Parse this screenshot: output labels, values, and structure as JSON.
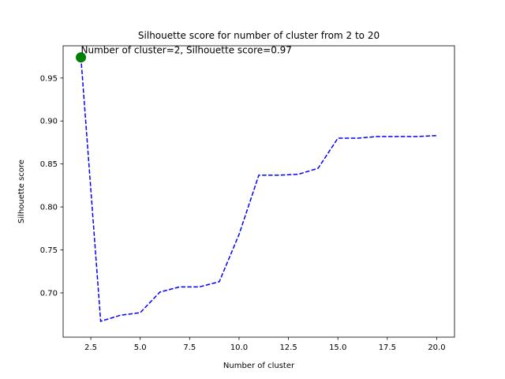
{
  "chart_data": {
    "type": "line",
    "title": "Silhouette score for number of cluster from 2 to 20",
    "xlabel": "Number of cluster",
    "ylabel": "Silhouette score",
    "xlim": [
      1.1,
      20.9
    ],
    "ylim": [
      0.6485,
      0.9875
    ],
    "xticks": [
      2.5,
      5.0,
      7.5,
      10.0,
      12.5,
      15.0,
      17.5,
      20.0
    ],
    "yticks": [
      0.7,
      0.75,
      0.8,
      0.85,
      0.9,
      0.95
    ],
    "grid": false,
    "series": [
      {
        "color": "#0000ff",
        "line_style": "dashed",
        "x": [
          2,
          3,
          4,
          5,
          6,
          7,
          8,
          9,
          10,
          11,
          12,
          13,
          14,
          15,
          16,
          17,
          18,
          19,
          20
        ],
        "y": [
          0.974,
          0.667,
          0.674,
          0.677,
          0.701,
          0.707,
          0.707,
          0.713,
          0.768,
          0.837,
          0.837,
          0.838,
          0.845,
          0.88,
          0.88,
          0.882,
          0.882,
          0.882,
          0.883
        ]
      }
    ],
    "highlight": {
      "x": 2,
      "y": 0.974,
      "color": "#008000"
    },
    "annotation": {
      "text": "Number of cluster=2, Silhouette score=0.97",
      "x": 2,
      "y": 0.974
    }
  }
}
